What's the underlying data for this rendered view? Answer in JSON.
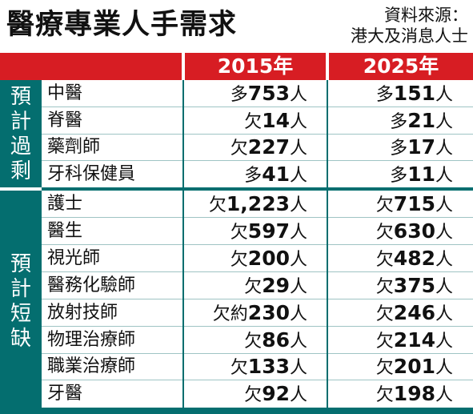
{
  "title": "醫療專業人手需求",
  "source": [
    "資料來源：",
    "港大及消息人士"
  ],
  "years": [
    "2015年",
    "2025年"
  ],
  "groups": [
    {
      "label": [
        "預",
        "計",
        "過",
        "剩"
      ]
    },
    {
      "label": [
        "預",
        "計",
        "短",
        "缺"
      ]
    }
  ],
  "rows": [
    {
      "name": "中醫",
      "v2015": {
        "prefix": "多",
        "num": "753",
        "unit": "人"
      },
      "v2025": {
        "prefix": "多",
        "num": "151",
        "unit": "人"
      }
    },
    {
      "name": "脊醫",
      "v2015": {
        "prefix": "欠",
        "num": "14",
        "unit": "人"
      },
      "v2025": {
        "prefix": "多",
        "num": "21",
        "unit": "人"
      }
    },
    {
      "name": "藥劑師",
      "v2015": {
        "prefix": "欠",
        "num": "227",
        "unit": "人"
      },
      "v2025": {
        "prefix": "多",
        "num": "17",
        "unit": "人"
      }
    },
    {
      "name": "牙科保健員",
      "v2015": {
        "prefix": "多",
        "num": "41",
        "unit": "人"
      },
      "v2025": {
        "prefix": "多",
        "num": "11",
        "unit": "人"
      }
    },
    {
      "name": "護士",
      "v2015": {
        "prefix": "欠",
        "num": "1,223",
        "unit": "人"
      },
      "v2025": {
        "prefix": "欠",
        "num": "715",
        "unit": "人"
      }
    },
    {
      "name": "醫生",
      "v2015": {
        "prefix": "欠",
        "num": "597",
        "unit": "人"
      },
      "v2025": {
        "prefix": "欠",
        "num": "630",
        "unit": "人"
      }
    },
    {
      "name": "視光師",
      "v2015": {
        "prefix": "欠",
        "num": "200",
        "unit": "人"
      },
      "v2025": {
        "prefix": "欠",
        "num": "482",
        "unit": "人"
      }
    },
    {
      "name": "醫務化驗師",
      "v2015": {
        "prefix": "欠",
        "num": "29",
        "unit": "人"
      },
      "v2025": {
        "prefix": "欠",
        "num": "375",
        "unit": "人"
      }
    },
    {
      "name": "放射技師",
      "v2015": {
        "prefix": "欠約",
        "num": "230",
        "unit": "人"
      },
      "v2025": {
        "prefix": "欠",
        "num": "246",
        "unit": "人"
      }
    },
    {
      "name": "物理治療師",
      "v2015": {
        "prefix": "欠",
        "num": "86",
        "unit": "人"
      },
      "v2025": {
        "prefix": "欠",
        "num": "214",
        "unit": "人"
      }
    },
    {
      "name": "職業治療師",
      "v2015": {
        "prefix": "欠",
        "num": "133",
        "unit": "人"
      },
      "v2025": {
        "prefix": "欠",
        "num": "201",
        "unit": "人"
      }
    },
    {
      "name": "牙醫",
      "v2015": {
        "prefix": "欠",
        "num": "92",
        "unit": "人"
      },
      "v2025": {
        "prefix": "欠",
        "num": "198",
        "unit": "人"
      }
    }
  ]
}
